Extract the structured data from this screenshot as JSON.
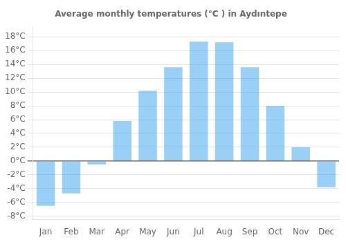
{
  "chart_data": {
    "type": "bar",
    "title": "Average monthly temperatures (°C ) in Aydıntepe",
    "categories": [
      "Jan",
      "Feb",
      "Mar",
      "Apr",
      "May",
      "Jun",
      "Jul",
      "Aug",
      "Sep",
      "Oct",
      "Nov",
      "Dec"
    ],
    "values": [
      -6.5,
      -4.7,
      -0.5,
      5.8,
      10.2,
      13.6,
      17.3,
      17.2,
      13.6,
      8.0,
      2.0,
      -3.8
    ],
    "ylim": [
      -8.5,
      19.5
    ],
    "yticks": [
      {
        "value": -8,
        "label": "-8°C"
      },
      {
        "value": -6,
        "label": "-6°C"
      },
      {
        "value": -4,
        "label": "-4°C"
      },
      {
        "value": -2,
        "label": "-2°C"
      },
      {
        "value": 0,
        "label": "0°C"
      },
      {
        "value": 2,
        "label": "2°C"
      },
      {
        "value": 4,
        "label": "4°C"
      },
      {
        "value": 6,
        "label": "6°C"
      },
      {
        "value": 8,
        "label": "8°C"
      },
      {
        "value": 10,
        "label": "10°C"
      },
      {
        "value": 12,
        "label": "12°C"
      },
      {
        "value": 14,
        "label": "14°C"
      },
      {
        "value": 16,
        "label": "16°C"
      },
      {
        "value": 18,
        "label": "18°C"
      }
    ],
    "grid": true
  }
}
